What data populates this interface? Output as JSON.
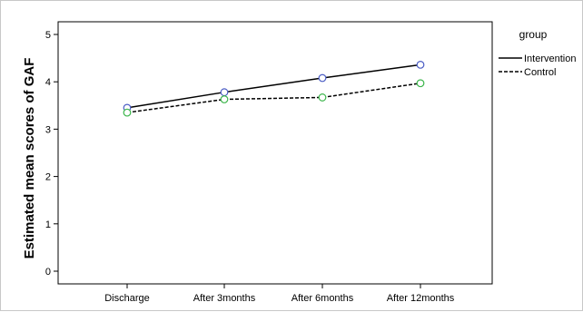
{
  "chart_data": {
    "type": "line",
    "categories": [
      "Discharge",
      "After 3months",
      "After 6months",
      "After 12months"
    ],
    "series": [
      {
        "name": "Intervention",
        "values": [
          3.45,
          3.78,
          4.08,
          4.36
        ],
        "line_style": "solid",
        "marker_color": "#4a5cc4"
      },
      {
        "name": "Control",
        "values": [
          3.35,
          3.63,
          3.67,
          3.97
        ],
        "line_style": "dashed",
        "marker_color": "#3bb54a"
      }
    ],
    "title": "",
    "xlabel": "",
    "ylabel": "Estimated mean scores of GAF",
    "ylim": [
      0,
      5
    ],
    "yticks": [
      0,
      1,
      2,
      3,
      4,
      5
    ],
    "grid": false,
    "legend_title": "group",
    "legend_position": "top-right",
    "line_color": "#000000"
  }
}
